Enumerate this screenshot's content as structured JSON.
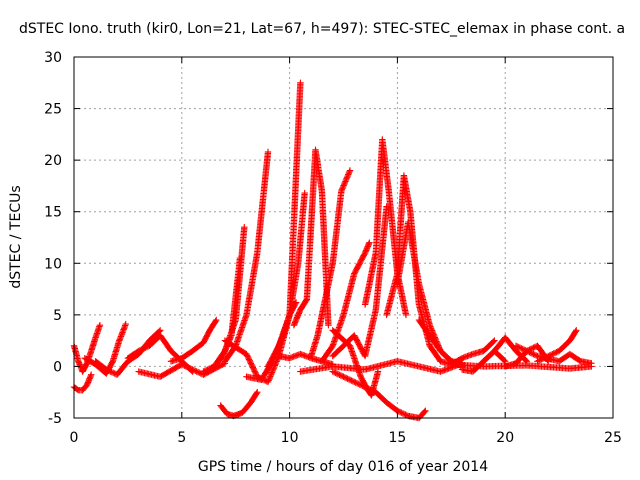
{
  "chart_data": {
    "type": "scatter",
    "title": "dSTEC Iono. truth (kir0, Lon=21, Lat=67, h=497): STEC-STEC_elemax in phase cont. a",
    "xlabel": "GPS time / hours of day 016 of year 2014",
    "ylabel": "dSTEC  / TECUs",
    "xlim": [
      0,
      25
    ],
    "ylim": [
      -5,
      30
    ],
    "x_ticks": [
      "0",
      "5",
      "10",
      "15",
      "20",
      "25"
    ],
    "y_ticks": [
      "-5",
      "0",
      "5",
      "10",
      "15",
      "20",
      "25",
      "30"
    ],
    "grid": true,
    "legend": "none",
    "marker": "plus",
    "color": "#ff0000",
    "series": [
      {
        "x": [
          0.0,
          0.2,
          0.4,
          0.6,
          0.8,
          1.0,
          1.2
        ],
        "y": [
          2.0,
          0.5,
          -0.5,
          0.3,
          1.5,
          2.8,
          4.0
        ]
      },
      {
        "x": [
          0.0,
          0.2,
          0.4,
          0.6,
          0.8
        ],
        "y": [
          -2.0,
          -2.3,
          -2.3,
          -1.8,
          -0.8
        ]
      },
      {
        "x": [
          0.5,
          1.0,
          1.5,
          1.8,
          2.1,
          2.4
        ],
        "y": [
          0.8,
          0.2,
          -0.7,
          0.5,
          2.5,
          4.1
        ]
      },
      {
        "x": [
          1.0,
          1.5,
          2.0,
          2.5,
          3.0,
          3.5,
          4.0
        ],
        "y": [
          0.5,
          -0.3,
          -0.8,
          0.5,
          1.2,
          2.5,
          3.5
        ]
      },
      {
        "x": [
          2.5,
          3.0,
          3.5,
          4.0,
          4.5,
          5.0,
          5.5
        ],
        "y": [
          0.8,
          1.5,
          2.0,
          3.0,
          1.5,
          0.5,
          -0.5
        ]
      },
      {
        "x": [
          3.0,
          4.0,
          5.0,
          6.0,
          7.0
        ],
        "y": [
          -0.5,
          -1.0,
          0.2,
          -0.8,
          0.3
        ]
      },
      {
        "x": [
          4.5,
          5.0,
          5.5,
          6.0,
          6.3,
          6.6
        ],
        "y": [
          0.5,
          0.8,
          1.5,
          2.3,
          3.5,
          4.5
        ]
      },
      {
        "x": [
          6.0,
          6.5,
          6.9,
          7.3,
          7.7
        ],
        "y": [
          -0.5,
          0.0,
          1.0,
          3.0,
          10.5
        ]
      },
      {
        "x": [
          6.5,
          7.0,
          7.5,
          7.9
        ],
        "y": [
          0.0,
          1.5,
          4.5,
          13.5
        ]
      },
      {
        "x": [
          6.8,
          7.1,
          7.4,
          7.8,
          8.2,
          8.5
        ],
        "y": [
          -3.8,
          -4.6,
          -4.8,
          -4.5,
          -3.5,
          -2.5
        ]
      },
      {
        "x": [
          7.0,
          7.5,
          8.0,
          8.5,
          9.0
        ],
        "y": [
          0.5,
          2.0,
          5.0,
          11.0,
          20.8
        ]
      },
      {
        "x": [
          7.0,
          8.0,
          8.5,
          9.0,
          9.5,
          10.0,
          10.5
        ],
        "y": [
          2.5,
          1.2,
          -1.0,
          -1.5,
          1.0,
          5.0,
          27.5
        ]
      },
      {
        "x": [
          8.0,
          8.7,
          9.2,
          9.7,
          10.0,
          10.3
        ],
        "y": [
          -1.0,
          -1.3,
          0.5,
          3.0,
          5.0,
          6.2
        ]
      },
      {
        "x": [
          9.0,
          9.5,
          10.0,
          10.4,
          10.7
        ],
        "y": [
          0.0,
          2.0,
          5.0,
          10.0,
          16.8
        ]
      },
      {
        "x": [
          9.5,
          10.0,
          10.5,
          11.0,
          11.5,
          12.0
        ],
        "y": [
          1.0,
          0.8,
          1.2,
          0.8,
          0.5,
          0.2
        ]
      },
      {
        "x": [
          10.2,
          10.5,
          10.8,
          11.2,
          11.5,
          11.8
        ],
        "y": [
          4.0,
          5.5,
          6.5,
          21.0,
          17.0,
          4.0
        ]
      },
      {
        "x": [
          11.0,
          11.3,
          11.6,
          12.0,
          12.4,
          12.8
        ],
        "y": [
          1.0,
          3.0,
          6.0,
          10.0,
          17.0,
          19.0
        ]
      },
      {
        "x": [
          11.5,
          12.0,
          12.5,
          13.0,
          13.5,
          13.7
        ],
        "y": [
          0.5,
          2.0,
          5.0,
          9.0,
          11.0,
          12.0
        ]
      },
      {
        "x": [
          12.0,
          12.5,
          13.0,
          13.5,
          14.0,
          14.5
        ],
        "y": [
          1.0,
          2.0,
          3.0,
          1.0,
          5.5,
          15.5
        ]
      },
      {
        "x": [
          12.0,
          12.8,
          13.3,
          13.6,
          13.8,
          14.1
        ],
        "y": [
          3.5,
          2.0,
          -1.0,
          -2.2,
          -2.8,
          -0.5
        ]
      },
      {
        "x": [
          13.5,
          14.0,
          14.3,
          14.6,
          15.0,
          15.4
        ],
        "y": [
          6.0,
          11.0,
          22.0,
          17.0,
          9.0,
          5.0
        ]
      },
      {
        "x": [
          12.0,
          13.0,
          14.0,
          14.5,
          15.0,
          15.5,
          16.0,
          16.3
        ],
        "y": [
          -0.5,
          -1.5,
          -2.5,
          -3.5,
          -4.3,
          -4.8,
          -5.0,
          -4.3
        ]
      },
      {
        "x": [
          10.5,
          12.0,
          13.5,
          15.0,
          16.0,
          17.0,
          18.0
        ],
        "y": [
          -0.5,
          0.0,
          -0.3,
          0.5,
          0.0,
          -0.5,
          0.3
        ]
      },
      {
        "x": [
          14.5,
          15.0,
          15.3,
          15.6,
          16.0,
          16.5,
          17.0
        ],
        "y": [
          5.0,
          9.0,
          18.5,
          15.0,
          6.0,
          2.0,
          0.5
        ]
      },
      {
        "x": [
          15.0,
          15.5,
          16.0,
          16.5,
          17.0,
          17.5,
          18.0
        ],
        "y": [
          8.0,
          14.0,
          8.0,
          4.0,
          1.5,
          0.5,
          0.0
        ]
      },
      {
        "x": [
          16.0,
          16.5,
          17.0,
          17.5,
          18.0
        ],
        "y": [
          4.5,
          3.0,
          1.5,
          0.5,
          0.3
        ]
      },
      {
        "x": [
          17.0,
          17.5,
          18.0,
          18.5,
          19.0,
          19.5
        ],
        "y": [
          0.5,
          0.2,
          0.8,
          1.2,
          1.5,
          2.5
        ]
      },
      {
        "x": [
          18.0,
          18.5,
          19.0,
          19.5,
          20.0
        ],
        "y": [
          -0.3,
          -0.5,
          0.5,
          1.5,
          0.5
        ]
      },
      {
        "x": [
          19.0,
          19.5,
          20.0,
          20.5,
          21.0
        ],
        "y": [
          0.5,
          1.5,
          2.8,
          1.5,
          0.5
        ]
      },
      {
        "x": [
          20.0,
          20.5,
          21.0,
          21.5,
          22.0
        ],
        "y": [
          0.0,
          0.3,
          1.5,
          2.0,
          0.5
        ]
      },
      {
        "x": [
          20.5,
          21.5,
          22.5,
          23.0,
          23.5,
          24.0
        ],
        "y": [
          2.0,
          1.0,
          0.5,
          1.2,
          0.5,
          0.3
        ]
      },
      {
        "x": [
          21.5,
          22.0,
          22.5,
          23.0,
          23.3
        ],
        "y": [
          0.5,
          1.0,
          1.5,
          2.5,
          3.5
        ]
      },
      {
        "x": [
          17.5,
          19.0,
          21.0,
          23.0,
          24.0
        ],
        "y": [
          0.2,
          0.0,
          0.1,
          -0.2,
          0.0
        ]
      }
    ]
  }
}
